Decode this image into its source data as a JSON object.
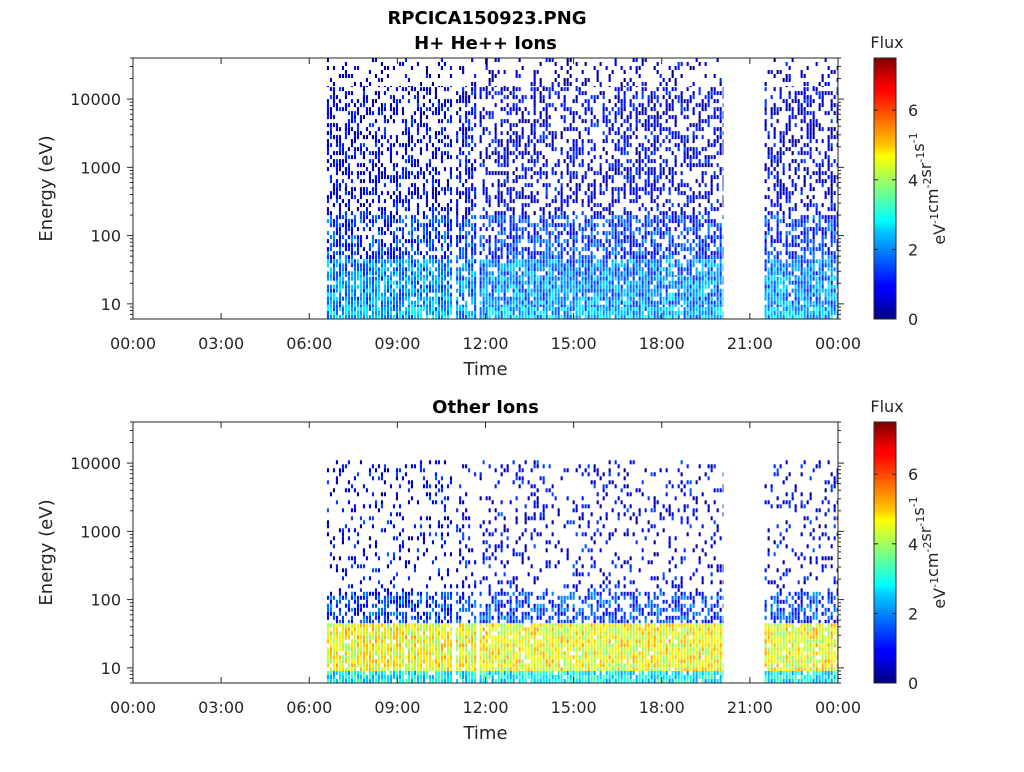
{
  "figure": {
    "title": "RPCICA150923.PNG"
  },
  "chart_data": [
    {
      "type": "heatmap",
      "title": "H+ He++ Ions",
      "xlabel": "Time",
      "ylabel": "Energy (eV)",
      "y_scale": "log",
      "xlim": [
        "00:00",
        "24:00"
      ],
      "ylim": [
        6,
        40000
      ],
      "x_tick_labels": [
        "00:00",
        "03:00",
        "06:00",
        "09:00",
        "12:00",
        "15:00",
        "18:00",
        "21:00",
        "00:00"
      ],
      "x_tick_hours": [
        0,
        3,
        6,
        9,
        12,
        15,
        18,
        21,
        24
      ],
      "y_tick_labels": [
        "10",
        "100",
        "1000",
        "10000"
      ],
      "y_tick_values": [
        10,
        100,
        1000,
        10000
      ],
      "data_intervals_hours": [
        [
          6.6,
          10.9
        ],
        [
          11.0,
          11.7
        ],
        [
          11.8,
          20.1
        ],
        [
          21.5,
          24.0
        ]
      ],
      "colorbar": {
        "label": "Flux",
        "unit": "eV-1cm-2sr-1s-1",
        "range": [
          0,
          7.5
        ],
        "ticks": [
          0,
          2,
          4,
          6
        ],
        "colormap": "jet"
      },
      "energy_bands": [
        {
          "e_min": 6,
          "e_max": 9,
          "flux_mean": 2.3
        },
        {
          "e_min": 9,
          "e_max": 25,
          "flux_mean": 2.0
        },
        {
          "e_min": 25,
          "e_max": 45,
          "flux_mean": 1.9
        },
        {
          "e_min": 45,
          "e_max": 200,
          "flux_mean": 1.3
        },
        {
          "e_min": 200,
          "e_max": 15000,
          "flux_mean": 0.7
        },
        {
          "e_min": 15000,
          "e_max": 40000,
          "flux_mean": 0.5
        }
      ],
      "density": [
        0.95,
        0.9,
        0.85,
        0.65,
        0.45,
        0.2
      ]
    },
    {
      "type": "heatmap",
      "title": "Other Ions",
      "xlabel": "Time",
      "ylabel": "Energy (eV)",
      "y_scale": "log",
      "xlim": [
        "00:00",
        "24:00"
      ],
      "ylim": [
        6,
        40000
      ],
      "x_tick_labels": [
        "00:00",
        "03:00",
        "06:00",
        "09:00",
        "12:00",
        "15:00",
        "18:00",
        "21:00",
        "00:00"
      ],
      "x_tick_hours": [
        0,
        3,
        6,
        9,
        12,
        15,
        18,
        21,
        24
      ],
      "y_tick_labels": [
        "10",
        "100",
        "1000",
        "10000"
      ],
      "y_tick_values": [
        10,
        100,
        1000,
        10000
      ],
      "data_intervals_hours": [
        [
          6.6,
          10.9
        ],
        [
          11.0,
          11.7
        ],
        [
          11.8,
          20.1
        ],
        [
          21.5,
          24.0
        ]
      ],
      "colorbar": {
        "label": "Flux",
        "unit": "eV-1cm-2sr-1s-1",
        "range": [
          0,
          7.5
        ],
        "ticks": [
          0,
          2,
          4,
          6
        ],
        "colormap": "jet"
      },
      "energy_bands": [
        {
          "e_min": 6,
          "e_max": 9,
          "flux_mean": 2.8
        },
        {
          "e_min": 9,
          "e_max": 45,
          "flux_mean": 4.6
        },
        {
          "e_min": 45,
          "e_max": 130,
          "flux_mean": 1.4
        },
        {
          "e_min": 130,
          "e_max": 11000,
          "flux_mean": 0.8
        }
      ],
      "density": [
        0.95,
        0.95,
        0.6,
        0.18
      ]
    }
  ]
}
